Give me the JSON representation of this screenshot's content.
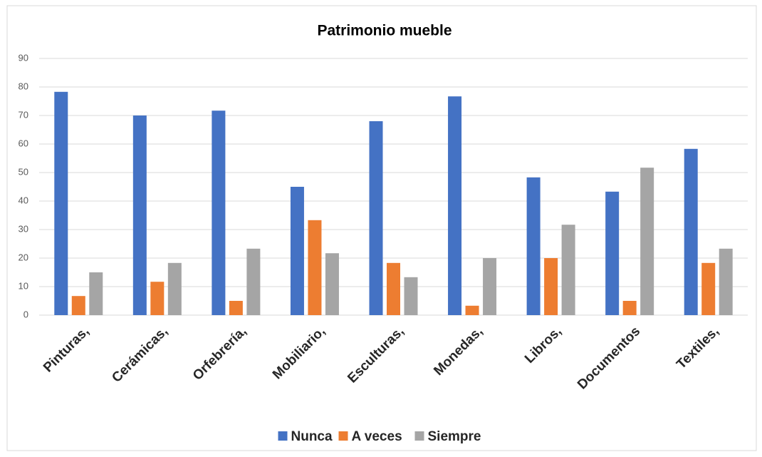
{
  "chart_data": {
    "type": "bar",
    "title": "Patrimonio mueble",
    "categories": [
      "Pinturas,",
      "Cerámicas,",
      "Orfebrería,",
      "Mobiliario,",
      "Esculturas,",
      "Monedas,",
      "Libros,",
      "Documentos",
      "Textiles,"
    ],
    "series": [
      {
        "name": "Nunca",
        "color": "#4472c4",
        "values": [
          78.3,
          70,
          71.7,
          45,
          68,
          76.7,
          48.3,
          43.3,
          58.3
        ]
      },
      {
        "name": "A veces",
        "color": "#ed7d31",
        "values": [
          6.7,
          11.7,
          5,
          33.3,
          18.3,
          3.3,
          20,
          5,
          18.3
        ]
      },
      {
        "name": "Siempre",
        "color": "#a5a5a5",
        "values": [
          15,
          18.3,
          23.3,
          21.7,
          13.3,
          20,
          31.7,
          51.7,
          23.3
        ]
      }
    ],
    "ylim": [
      0,
      90
    ],
    "yticks": [
      0,
      10,
      20,
      30,
      40,
      50,
      60,
      70,
      80,
      90
    ],
    "grid": true,
    "legend": "bottom"
  }
}
